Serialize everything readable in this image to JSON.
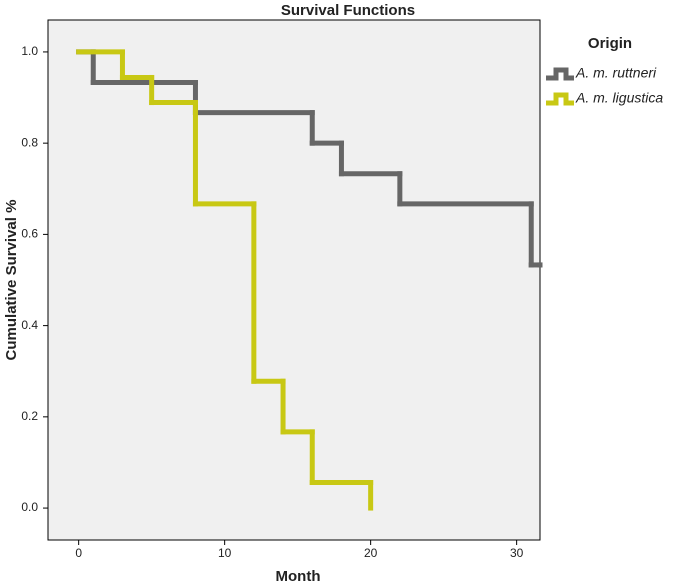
{
  "chart_data": {
    "type": "step",
    "title": "Survival Functions",
    "x_label": "Month",
    "y_label": "Cumulative Survival %",
    "legend_title": "Origin",
    "xlim": [
      -2.1,
      31.6
    ],
    "ylim": [
      -0.07,
      1.07
    ],
    "xticks": [
      0,
      10,
      20,
      30
    ],
    "yticks": [
      {
        "value": 0,
        "label": "0.0"
      },
      {
        "value": 0.2,
        "label": "0.2"
      },
      {
        "value": 0.4,
        "label": "0.4"
      },
      {
        "value": 0.6,
        "label": "0.6"
      },
      {
        "value": 0.8,
        "label": "0.8"
      },
      {
        "value": 1,
        "label": "1.0"
      }
    ],
    "series": [
      {
        "name": "A. m. ruttneri",
        "color": "#666666",
        "x": [
          0,
          1,
          8,
          16,
          18,
          22,
          31,
          31.6
        ],
        "values": [
          1,
          0.933,
          0.867,
          0.8,
          0.733,
          0.667,
          0.533,
          0.533
        ]
      },
      {
        "name": "A. m. ligustica",
        "color": "#c8c814",
        "x": [
          0,
          3,
          5,
          8,
          12,
          14,
          16,
          20
        ],
        "values": [
          1,
          0.944,
          0.889,
          0.667,
          0.278,
          0.167,
          0.056,
          0
        ]
      }
    ]
  }
}
